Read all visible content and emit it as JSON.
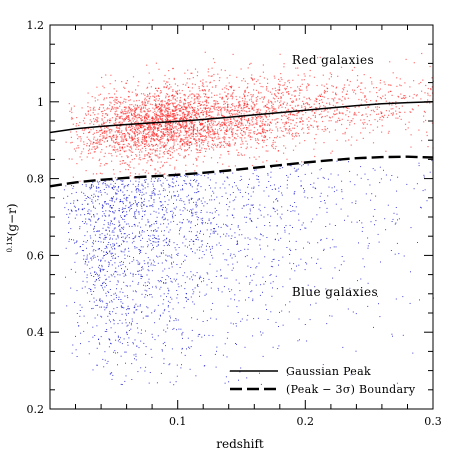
{
  "chart_data": {
    "type": "scatter",
    "xlabel": "redshift",
    "ylabel_prefix": "0.1",
    "ylabel_main": "(g−r)",
    "xlim": [
      0.0,
      0.3
    ],
    "ylim": [
      0.2,
      1.2
    ],
    "xticks": [
      0.1,
      0.2,
      0.3
    ],
    "xtick_labels": [
      "0.1",
      "0.2",
      "0.3"
    ],
    "yticks": [
      0.2,
      0.4,
      0.6,
      0.8,
      1.0,
      1.2
    ],
    "ytick_labels": [
      "0.2",
      "0.4",
      "0.6",
      "0.8",
      "1",
      "1.2"
    ],
    "annotations": [
      {
        "text": "Red galaxies",
        "x": 0.2,
        "y": 1.09
      },
      {
        "text": "Blue galaxies",
        "x": 0.2,
        "y": 0.5
      }
    ],
    "legend": {
      "position": "bottom-right",
      "entries": [
        {
          "label": "Gaussian Peak",
          "style": "solid"
        },
        {
          "label": "(Peak − 3σ) Boundary",
          "style": "dashed"
        }
      ]
    },
    "lines": [
      {
        "name": "Gaussian Peak",
        "style": "solid",
        "x": [
          0.0,
          0.02,
          0.04,
          0.06,
          0.08,
          0.1,
          0.12,
          0.14,
          0.16,
          0.18,
          0.2,
          0.22,
          0.24,
          0.26,
          0.28,
          0.3
        ],
        "y": [
          0.92,
          0.93,
          0.936,
          0.941,
          0.945,
          0.949,
          0.954,
          0.96,
          0.966,
          0.972,
          0.978,
          0.984,
          0.99,
          0.995,
          0.998,
          1.0
        ]
      },
      {
        "name": "(Peak − 3σ) Boundary",
        "style": "dashed",
        "x": [
          0.0,
          0.02,
          0.04,
          0.06,
          0.08,
          0.1,
          0.12,
          0.14,
          0.16,
          0.18,
          0.2,
          0.22,
          0.24,
          0.26,
          0.28,
          0.3
        ],
        "y": [
          0.78,
          0.79,
          0.797,
          0.802,
          0.806,
          0.81,
          0.815,
          0.821,
          0.828,
          0.835,
          0.842,
          0.848,
          0.853,
          0.856,
          0.857,
          0.855
        ]
      }
    ],
    "point_clouds": [
      {
        "name": "Red galaxies",
        "color": "#ff0000",
        "count": 3600,
        "x_range": [
          0.012,
          0.3
        ],
        "center_y_at_x": {
          "x": [
            0.0,
            0.1,
            0.2,
            0.3
          ],
          "y": [
            0.92,
            0.949,
            0.978,
            1.0
          ]
        },
        "sigma": 0.05,
        "density_peak_x": 0.09
      },
      {
        "name": "Blue galaxies",
        "color": "#0000cc",
        "count": 2200,
        "x_range": [
          0.01,
          0.3
        ],
        "y_range": [
          0.26,
          0.85
        ],
        "density_peak_x": 0.05
      }
    ],
    "grid": false
  }
}
